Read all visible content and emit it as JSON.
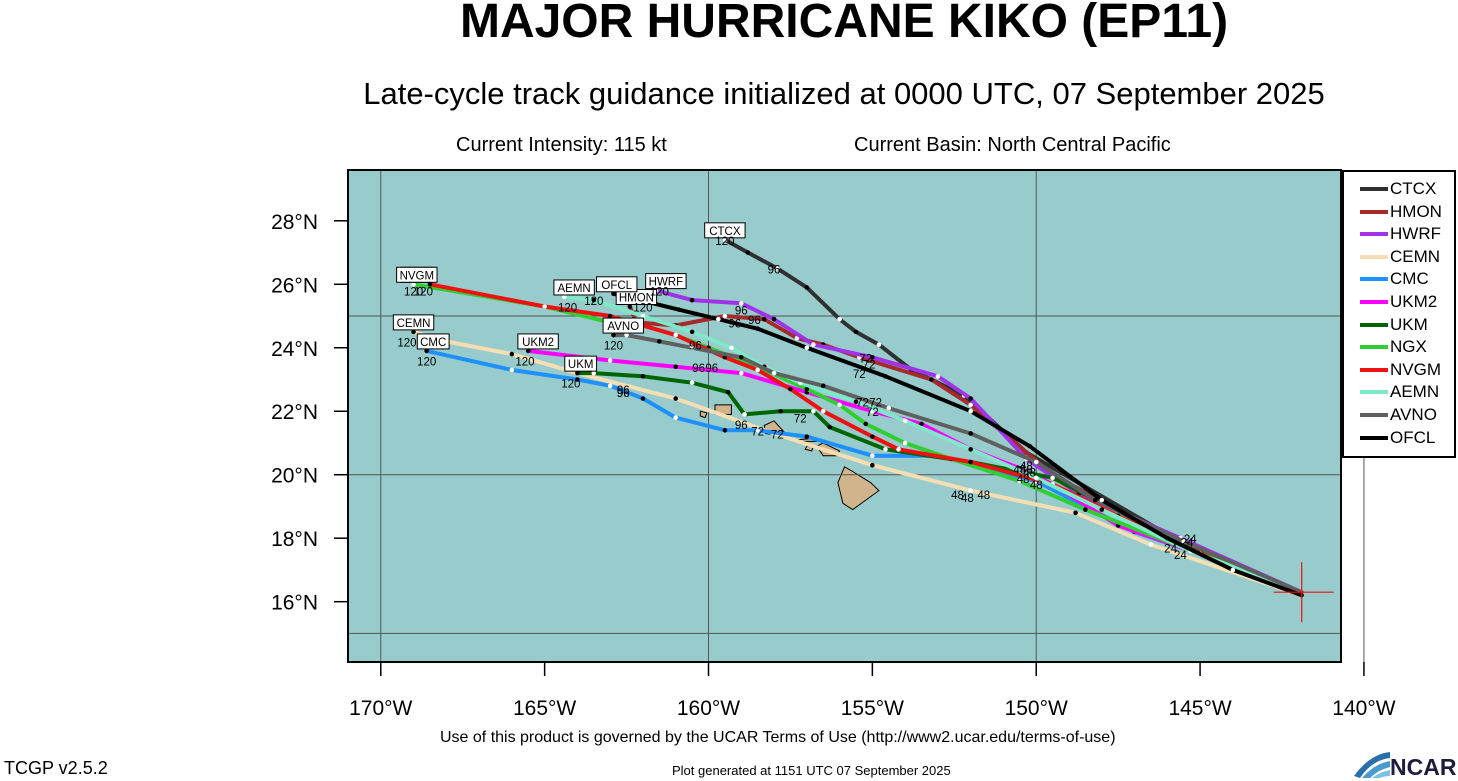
{
  "title": "MAJOR HURRICANE KIKO (EP11)",
  "subtitle": "Late-cycle track guidance initialized at 0000 UTC, 07 September 2025",
  "current_intensity": "Current Intensity: 115 kt",
  "current_basin": "Current Basin: North Central Pacific",
  "footer": {
    "terms": "Use of this product is governed by the UCAR Terms of Use (http://www2.ucar.edu/terms-of-use)",
    "version": "TCGP v2.5.2",
    "generated": "Plot generated at 1151 UTC   07 September 2025",
    "logo_text": "NCAR"
  },
  "colors": {
    "ocean": "#98cccc",
    "land": "#d2b48c"
  },
  "map": {
    "lon_ticks": [
      -170,
      -165,
      -160,
      -155,
      -150,
      -145,
      -140
    ],
    "lon_labels": [
      "170°W",
      "165°W",
      "160°W",
      "155°W",
      "150°W",
      "145°W",
      "140°W"
    ],
    "lat_ticks": [
      16,
      18,
      20,
      22,
      24,
      26,
      28
    ],
    "lat_labels": [
      "16°N",
      "18°N",
      "20°N",
      "22°N",
      "24°N",
      "26°N",
      "28°N"
    ],
    "lon_range": [
      -171,
      -140.7
    ],
    "lat_range": [
      14.1,
      29.6
    ],
    "gridlines_lat": [
      15,
      20,
      25
    ],
    "gridlines_lon": [
      -170,
      -160,
      -150,
      -140
    ],
    "storm_position": [
      -141.9,
      16.3
    ]
  },
  "tracks": [
    {
      "name": "CTCX",
      "color": "#303030",
      "points": [
        [
          -141.9,
          16.2
        ],
        [
          -145.8,
          18.0
        ],
        [
          -150.3,
          20.7
        ],
        [
          -152.2,
          22.5
        ],
        [
          -153.8,
          23.3
        ],
        [
          -154.8,
          24.1
        ],
        [
          -155.5,
          24.5
        ],
        [
          -156.0,
          24.9
        ],
        [
          -157.0,
          25.9
        ],
        [
          -157.9,
          26.5
        ],
        [
          -158.8,
          27.0
        ],
        [
          -159.5,
          27.4
        ]
      ],
      "label_pos": [
        -159.5,
        27.4
      ],
      "end_hours": [
        [
          -159.5,
          27.4,
          "120"
        ],
        [
          -158.0,
          26.5,
          "96"
        ],
        [
          -155.2,
          23.7,
          "72"
        ]
      ]
    },
    {
      "name": "HMON",
      "color": "#a52a2a",
      "points": [
        [
          -141.9,
          16.2
        ],
        [
          -145.9,
          18.0
        ],
        [
          -149.5,
          20.0
        ],
        [
          -152.0,
          22.2
        ],
        [
          -153.2,
          23.0
        ],
        [
          -155.4,
          23.7
        ],
        [
          -156.5,
          24.1
        ],
        [
          -157.3,
          24.3
        ],
        [
          -158.3,
          24.9
        ],
        [
          -159.5,
          25.0
        ],
        [
          -161.0,
          24.7
        ],
        [
          -162.2,
          24.8
        ],
        [
          -162.4,
          25.3
        ]
      ],
      "label_pos": [
        -162.2,
        25.3
      ],
      "end_hours": [
        [
          -162.0,
          25.3,
          "120"
        ],
        [
          -158.6,
          24.9,
          "96"
        ],
        [
          -155.4,
          23.2,
          "72"
        ]
      ]
    },
    {
      "name": "HWRF",
      "color": "#a033e8",
      "points": [
        [
          -141.9,
          16.3
        ],
        [
          -145.6,
          18.0
        ],
        [
          -148.7,
          19.4
        ],
        [
          -150.3,
          20.5
        ],
        [
          -152.0,
          22.4
        ],
        [
          -153.0,
          23.1
        ],
        [
          -155.0,
          23.7
        ],
        [
          -156.8,
          24.1
        ],
        [
          -158.0,
          24.9
        ],
        [
          -159.0,
          25.4
        ],
        [
          -160.5,
          25.5
        ],
        [
          -161.6,
          25.8
        ]
      ],
      "label_pos": [
        -161.3,
        25.8
      ],
      "end_hours": [
        [
          -161.5,
          25.8,
          "120"
        ],
        [
          -159.0,
          25.2,
          "96"
        ]
      ]
    },
    {
      "name": "CEMN",
      "color": "#f5deb3",
      "points": [
        [
          -141.9,
          16.2
        ],
        [
          -146.5,
          17.8
        ],
        [
          -148.8,
          18.8
        ],
        [
          -152.0,
          19.5
        ],
        [
          -155.0,
          20.3
        ],
        [
          -158.0,
          21.3
        ],
        [
          -161.0,
          22.4
        ],
        [
          -164.0,
          23.2
        ],
        [
          -166.0,
          23.8
        ],
        [
          -168.0,
          24.2
        ],
        [
          -169.0,
          24.5
        ]
      ],
      "label_pos": [
        -169.0,
        24.5
      ],
      "end_hours": [
        [
          -169.2,
          24.2,
          "120"
        ],
        [
          -162.6,
          22.7,
          "96"
        ],
        [
          -158.5,
          21.4,
          "72"
        ],
        [
          -152.4,
          19.4,
          "48"
        ]
      ]
    },
    {
      "name": "CMC",
      "color": "#1e90ff",
      "points": [
        [
          -141.9,
          16.2
        ],
        [
          -145.0,
          17.5
        ],
        [
          -147.0,
          18.2
        ],
        [
          -150.0,
          19.8
        ],
        [
          -153.0,
          20.6
        ],
        [
          -155.0,
          20.6
        ],
        [
          -157.0,
          21.2
        ],
        [
          -158.5,
          21.4
        ],
        [
          -159.5,
          21.4
        ],
        [
          -161.0,
          21.8
        ],
        [
          -162.0,
          22.4
        ],
        [
          -163.0,
          22.8
        ],
        [
          -164.0,
          23.0
        ],
        [
          -166.0,
          23.3
        ],
        [
          -168.6,
          23.9
        ]
      ],
      "label_pos": [
        -168.4,
        23.9
      ],
      "end_hours": [
        [
          -168.6,
          23.6,
          "120"
        ],
        [
          -162.6,
          22.6,
          "96"
        ],
        [
          -157.9,
          21.3,
          "72"
        ]
      ]
    },
    {
      "name": "UKM2",
      "color": "#ff00ff",
      "points": [
        [
          -141.9,
          16.3
        ],
        [
          -145.0,
          17.5
        ],
        [
          -147.5,
          18.4
        ],
        [
          -149.5,
          19.7
        ],
        [
          -150.5,
          20.2
        ],
        [
          -152.0,
          20.8
        ],
        [
          -153.5,
          21.6
        ],
        [
          -155.0,
          22.0
        ],
        [
          -157.0,
          22.6
        ],
        [
          -159.0,
          23.2
        ],
        [
          -161.0,
          23.4
        ],
        [
          -163.0,
          23.6
        ],
        [
          -165.5,
          23.9
        ]
      ],
      "label_pos": [
        -165.2,
        23.9
      ],
      "end_hours": [
        [
          -165.6,
          23.6,
          "120"
        ],
        [
          -160.3,
          23.4,
          "96"
        ],
        [
          -155.0,
          22.0,
          "72"
        ],
        [
          -150.5,
          20.2,
          "48"
        ]
      ]
    },
    {
      "name": "UKM",
      "color": "#006400",
      "points": [
        [
          -141.9,
          16.2
        ],
        [
          -145.0,
          17.5
        ],
        [
          -147.0,
          18.6
        ],
        [
          -149.5,
          19.9
        ],
        [
          -152.0,
          20.4
        ],
        [
          -154.6,
          20.8
        ],
        [
          -156.3,
          21.5
        ],
        [
          -156.8,
          22.0
        ],
        [
          -157.8,
          22.0
        ],
        [
          -158.9,
          21.9
        ],
        [
          -159.4,
          22.6
        ],
        [
          -160.5,
          22.9
        ],
        [
          -162.0,
          23.1
        ],
        [
          -163.5,
          23.2
        ],
        [
          -164.0,
          23.2
        ]
      ],
      "label_pos": [
        -163.9,
        23.2
      ],
      "end_hours": [
        [
          -164.2,
          22.9,
          "120"
        ],
        [
          -162.6,
          22.6,
          "96"
        ],
        [
          -159.0,
          21.6,
          "96"
        ],
        [
          -157.2,
          21.8,
          "72"
        ],
        [
          -150.4,
          19.9,
          "48"
        ]
      ]
    },
    {
      "name": "NGX",
      "color": "#32cd32",
      "points": [
        [
          -141.9,
          16.3
        ],
        [
          -145.5,
          17.7
        ],
        [
          -148.5,
          18.9
        ],
        [
          -150.5,
          19.8
        ],
        [
          -152.6,
          20.5
        ],
        [
          -154.0,
          21.0
        ],
        [
          -155.2,
          21.6
        ],
        [
          -156.0,
          22.2
        ],
        [
          -157.0,
          22.7
        ],
        [
          -158.5,
          23.4
        ],
        [
          -160.0,
          24.0
        ],
        [
          -161.0,
          24.4
        ],
        [
          -162.0,
          24.7
        ],
        [
          -163.0,
          24.8
        ],
        [
          -165.0,
          25.3
        ],
        [
          -169.0,
          26.0
        ]
      ],
      "label_pos": [
        -168.9,
        26.0
      ],
      "end_hours": [
        [
          -169.0,
          25.8,
          "120"
        ],
        [
          -150.3,
          20.2,
          "48"
        ]
      ]
    },
    {
      "name": "NVGM",
      "color": "#ee1111",
      "points": [
        [
          -141.9,
          16.2
        ],
        [
          -145.0,
          17.5
        ],
        [
          -147.5,
          18.7
        ],
        [
          -149.5,
          19.7
        ],
        [
          -152.0,
          20.4
        ],
        [
          -154.2,
          20.8
        ],
        [
          -155.0,
          21.2
        ],
        [
          -156.5,
          22.0
        ],
        [
          -157.5,
          22.7
        ],
        [
          -158.5,
          23.3
        ],
        [
          -159.5,
          23.7
        ],
        [
          -161.0,
          24.4
        ],
        [
          -163.0,
          25.0
        ],
        [
          -165.0,
          25.3
        ],
        [
          -168.5,
          26.0
        ]
      ],
      "label_pos": [
        -168.9,
        26.0
      ],
      "end_hours": [
        [
          -168.7,
          25.8,
          "120"
        ],
        [
          -159.9,
          23.4,
          "96"
        ],
        [
          -150.2,
          20.1,
          "48"
        ]
      ]
    },
    {
      "name": "AEMN",
      "color": "#7fe8c8",
      "points": [
        [
          -141.9,
          16.3
        ],
        [
          -145.3,
          17.6
        ],
        [
          -148.0,
          18.9
        ],
        [
          -150.0,
          19.9
        ],
        [
          -152.0,
          20.8
        ],
        [
          -154.0,
          21.7
        ],
        [
          -155.5,
          22.3
        ],
        [
          -157.2,
          22.9
        ],
        [
          -158.3,
          23.4
        ],
        [
          -159.3,
          24.0
        ],
        [
          -160.5,
          24.5
        ],
        [
          -162.0,
          25.0
        ],
        [
          -163.5,
          25.5
        ],
        [
          -164.4,
          25.6
        ]
      ],
      "label_pos": [
        -164.1,
        25.6
      ],
      "end_hours": [
        [
          -164.3,
          25.3,
          "120"
        ],
        [
          -155.3,
          22.3,
          "72"
        ]
      ]
    },
    {
      "name": "AVNO",
      "color": "#606060",
      "points": [
        [
          -141.9,
          16.3
        ],
        [
          -145.5,
          17.9
        ],
        [
          -148.2,
          19.2
        ],
        [
          -150.0,
          20.4
        ],
        [
          -152.0,
          21.3
        ],
        [
          -154.5,
          22.1
        ],
        [
          -156.5,
          22.8
        ],
        [
          -158.0,
          23.2
        ],
        [
          -159.0,
          23.7
        ],
        [
          -160.5,
          24.0
        ],
        [
          -161.5,
          24.2
        ],
        [
          -162.5,
          24.4
        ],
        [
          -162.9,
          24.4
        ]
      ],
      "label_pos": [
        -162.6,
        24.4
      ],
      "end_hours": [
        [
          -162.9,
          24.1,
          "120"
        ],
        [
          -160.4,
          24.1,
          "96"
        ],
        [
          -154.9,
          22.3,
          "72"
        ],
        [
          -150.3,
          20.3,
          "48"
        ]
      ]
    },
    {
      "name": "OFCL",
      "color": "#000000",
      "points": [
        [
          -141.9,
          16.2
        ],
        [
          -144.0,
          17.0
        ],
        [
          -146.0,
          18.0
        ],
        [
          -148.0,
          19.2
        ],
        [
          -150.2,
          20.9
        ],
        [
          -152.0,
          22.0
        ],
        [
          -154.6,
          23.1
        ],
        [
          -157.0,
          24.0
        ],
        [
          -158.5,
          24.6
        ],
        [
          -159.7,
          24.9
        ],
        [
          -160.9,
          25.2
        ],
        [
          -162.1,
          25.5
        ],
        [
          -162.9,
          25.7
        ]
      ],
      "label_pos": [
        -162.8,
        25.7
      ],
      "end_hours": [
        [
          -163.5,
          25.5,
          "120"
        ],
        [
          -159.2,
          24.8,
          "96"
        ],
        [
          -155.1,
          23.5,
          "72"
        ]
      ]
    }
  ],
  "short_hour_labels": [
    [
      -145.3,
      18.0,
      "24"
    ],
    [
      -145.9,
      17.7,
      "24"
    ],
    [
      -145.6,
      17.5,
      "24"
    ],
    [
      -145.4,
      17.9,
      "24"
    ],
    [
      -151.6,
      19.4,
      "48"
    ],
    [
      -152.1,
      19.3,
      "48"
    ],
    [
      -150.0,
      19.7,
      "48"
    ]
  ]
}
